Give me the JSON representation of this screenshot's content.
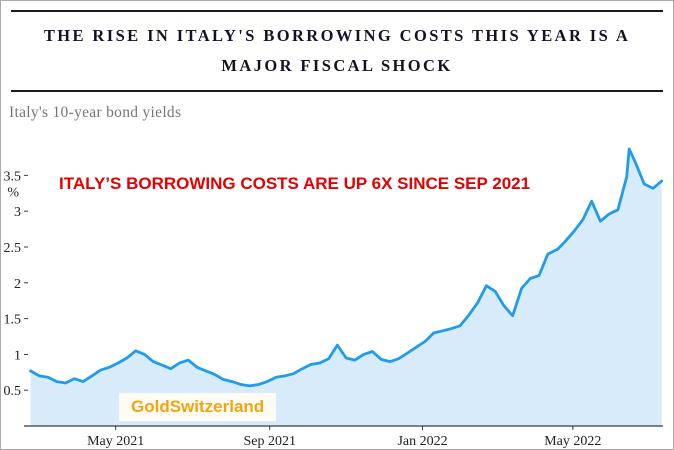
{
  "header": {
    "title": "THE RISE IN ITALY'S BORROWING COSTS THIS YEAR IS A MAJOR FISCAL SHOCK",
    "subtitle": "Italy's 10-year bond yields"
  },
  "annotation": {
    "text": "ITALY’S BORROWING COSTS ARE UP 6X SINCE SEP 2021",
    "color": "#e60000"
  },
  "watermark": {
    "text": "GoldSwitzerland",
    "color": "#f2a50c"
  },
  "chart_data": {
    "type": "area",
    "title": "Italy's 10-year bond yields",
    "xlabel": "",
    "ylabel": "%",
    "ylim": [
      0,
      4.05
    ],
    "yticks": [
      0.5,
      1,
      1.5,
      2,
      2.5,
      3,
      3.5
    ],
    "x_range": [
      "2021-02-20",
      "2022-07-12"
    ],
    "xticks": [
      {
        "date": "2021-05-01",
        "label": "May 2021"
      },
      {
        "date": "2021-09-01",
        "label": "Sep 2021"
      },
      {
        "date": "2022-01-01",
        "label": "Jan 2022"
      },
      {
        "date": "2022-05-01",
        "label": "May 2022"
      }
    ],
    "grid": false,
    "legend": "none",
    "line_color": "#1f9ceb",
    "fill_color": "#d8ebfa",
    "axis_color": "#3a3a3a",
    "tick_label_color": "#222222",
    "series": [
      {
        "name": "Italy 10-year bond yield (%)",
        "points": [
          [
            "2021-02-22",
            0.77
          ],
          [
            "2021-03-01",
            0.7
          ],
          [
            "2021-03-08",
            0.68
          ],
          [
            "2021-03-15",
            0.62
          ],
          [
            "2021-03-22",
            0.6
          ],
          [
            "2021-03-29",
            0.66
          ],
          [
            "2021-04-05",
            0.62
          ],
          [
            "2021-04-12",
            0.7
          ],
          [
            "2021-04-19",
            0.78
          ],
          [
            "2021-04-26",
            0.82
          ],
          [
            "2021-05-03",
            0.88
          ],
          [
            "2021-05-10",
            0.95
          ],
          [
            "2021-05-17",
            1.05
          ],
          [
            "2021-05-24",
            1.0
          ],
          [
            "2021-05-31",
            0.9
          ],
          [
            "2021-06-07",
            0.85
          ],
          [
            "2021-06-14",
            0.8
          ],
          [
            "2021-06-21",
            0.88
          ],
          [
            "2021-06-28",
            0.92
          ],
          [
            "2021-07-05",
            0.82
          ],
          [
            "2021-07-12",
            0.77
          ],
          [
            "2021-07-19",
            0.72
          ],
          [
            "2021-07-26",
            0.65
          ],
          [
            "2021-08-02",
            0.62
          ],
          [
            "2021-08-09",
            0.58
          ],
          [
            "2021-08-16",
            0.56
          ],
          [
            "2021-08-23",
            0.58
          ],
          [
            "2021-08-30",
            0.62
          ],
          [
            "2021-09-06",
            0.68
          ],
          [
            "2021-09-13",
            0.7
          ],
          [
            "2021-09-20",
            0.73
          ],
          [
            "2021-09-27",
            0.8
          ],
          [
            "2021-10-04",
            0.86
          ],
          [
            "2021-10-11",
            0.88
          ],
          [
            "2021-10-18",
            0.94
          ],
          [
            "2021-10-25",
            1.13
          ],
          [
            "2021-11-01",
            0.95
          ],
          [
            "2021-11-08",
            0.92
          ],
          [
            "2021-11-15",
            1.0
          ],
          [
            "2021-11-22",
            1.04
          ],
          [
            "2021-11-29",
            0.93
          ],
          [
            "2021-12-06",
            0.9
          ],
          [
            "2021-12-13",
            0.94
          ],
          [
            "2021-12-20",
            1.02
          ],
          [
            "2021-12-27",
            1.1
          ],
          [
            "2022-01-03",
            1.18
          ],
          [
            "2022-01-10",
            1.3
          ],
          [
            "2022-01-17",
            1.33
          ],
          [
            "2022-01-24",
            1.36
          ],
          [
            "2022-01-31",
            1.4
          ],
          [
            "2022-02-07",
            1.55
          ],
          [
            "2022-02-14",
            1.72
          ],
          [
            "2022-02-21",
            1.96
          ],
          [
            "2022-02-28",
            1.88
          ],
          [
            "2022-03-07",
            1.68
          ],
          [
            "2022-03-14",
            1.54
          ],
          [
            "2022-03-21",
            1.92
          ],
          [
            "2022-03-28",
            2.06
          ],
          [
            "2022-04-04",
            2.1
          ],
          [
            "2022-04-11",
            2.4
          ],
          [
            "2022-04-19",
            2.47
          ],
          [
            "2022-04-25",
            2.58
          ],
          [
            "2022-05-02",
            2.72
          ],
          [
            "2022-05-09",
            2.88
          ],
          [
            "2022-05-16",
            3.14
          ],
          [
            "2022-05-23",
            2.86
          ],
          [
            "2022-05-30",
            2.96
          ],
          [
            "2022-06-06",
            3.02
          ],
          [
            "2022-06-13",
            3.48
          ],
          [
            "2022-06-15",
            3.87
          ],
          [
            "2022-06-20",
            3.68
          ],
          [
            "2022-06-27",
            3.38
          ],
          [
            "2022-07-04",
            3.32
          ],
          [
            "2022-07-11",
            3.42
          ]
        ]
      }
    ]
  }
}
